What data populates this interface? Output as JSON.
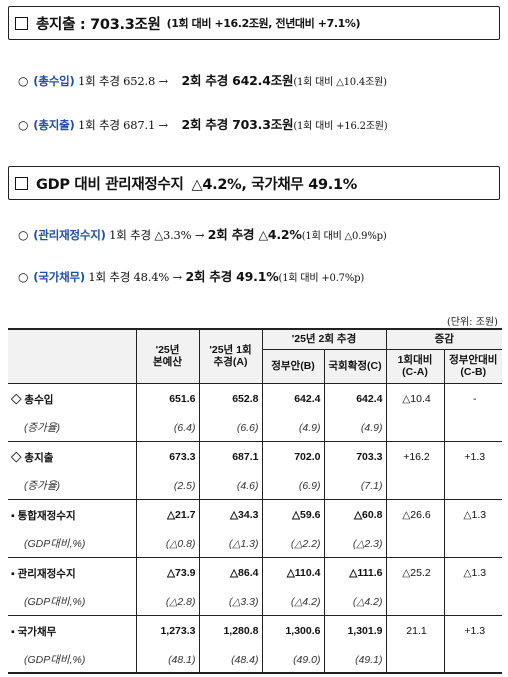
{
  "section1": {
    "title": "총지출 : 703.3조원",
    "subtitle": "(1회 대비 +16.2조원, 전년대비 +7.1%)"
  },
  "bullets1": [
    {
      "circle": "○",
      "label": "(총수입)",
      "prev": "1회 추경 652.8 →",
      "cur": "2회 추경 642.4조원",
      "note": "(1회 대비 △10.4조원)"
    },
    {
      "circle": "○",
      "label": "(총지출)",
      "prev": "1회 추경 687.1 →",
      "cur": "2회 추경 703.3조원",
      "note": "(1회 대비 +16.2조원)"
    }
  ],
  "section2": {
    "title": "GDP 대비 관리재정수지",
    "subtitle": "△4.2%, 국가채무 49.1%"
  },
  "bullets2": [
    {
      "circle": "○",
      "label": "(관리재정수지)",
      "prev": "1회 추경 △3.3% →",
      "cur": "2회 추경 △4.2%",
      "note": "(1회 대비 △0.9%p)"
    },
    {
      "circle": "○",
      "label": "(국가채무)",
      "prev": "1회 추경 48.4% →",
      "cur": "2회 추경 49.1%",
      "note": "(1회 대비 +0.7%p)"
    }
  ],
  "unit": "(단위: 조원)",
  "table": {
    "headers": {
      "col_base": "'25년\n본예산",
      "col_ext1": "'25년 1회\n추경(A)",
      "group2": "'25년 2회 추경",
      "col_gov": "정부안(B)",
      "col_nat": "국회확정(C)",
      "group_chg": "증감",
      "col_ca": "1회대비\n(C-A)",
      "col_cb": "정부안대비\n(C-B)"
    },
    "rows": [
      {
        "label": "◇ 총수입",
        "v": [
          "651.6",
          "652.8",
          "642.4",
          "642.4"
        ],
        "ca": "△10.4",
        "cb": "-",
        "kind": "main"
      },
      {
        "label": "(증가율)",
        "v": [
          "(6.4)",
          "(6.6)",
          "(4.9)",
          "(4.9)"
        ],
        "ca": "",
        "cb": "",
        "kind": "sub"
      },
      {
        "label": "◇ 총지출",
        "v": [
          "673.3",
          "687.1",
          "702.0",
          "703.3"
        ],
        "ca": "+16.2",
        "cb": "+1.3",
        "kind": "main"
      },
      {
        "label": "(증가율)",
        "v": [
          "(2.5)",
          "(4.6)",
          "(6.9)",
          "(7.1)"
        ],
        "ca": "",
        "cb": "",
        "kind": "sub"
      },
      {
        "label": "▪ 통합재정수지",
        "v": [
          "△21.7",
          "△34.3",
          "△59.6",
          "△60.8"
        ],
        "ca": "△26.6",
        "cb": "△1.3",
        "kind": "main"
      },
      {
        "label": "(GDP대비,%)",
        "v": [
          "(△0.8)",
          "(△1.3)",
          "(△2.2)",
          "(△2.3)"
        ],
        "ca": "",
        "cb": "",
        "kind": "sub"
      },
      {
        "label": "▪ 관리재정수지",
        "v": [
          "△73.9",
          "△86.4",
          "△110.4",
          "△111.6"
        ],
        "ca": "△25.2",
        "cb": "△1.3",
        "kind": "main"
      },
      {
        "label": "(GDP대비,%)",
        "v": [
          "(△2.8)",
          "(△3.3)",
          "(△4.2)",
          "(△4.2)"
        ],
        "ca": "",
        "cb": "",
        "kind": "sub"
      },
      {
        "label": "▪ 국가채무",
        "v": [
          "1,273.3",
          "1,280.8",
          "1,300.6",
          "1,301.9"
        ],
        "ca": "21.1",
        "cb": "+1.3",
        "kind": "main"
      },
      {
        "label": "(GDP대비,%)",
        "v": [
          "(48.1)",
          "(48.4)",
          "(49.0)",
          "(49.1)"
        ],
        "ca": "",
        "cb": "",
        "kind": "sub"
      }
    ]
  }
}
